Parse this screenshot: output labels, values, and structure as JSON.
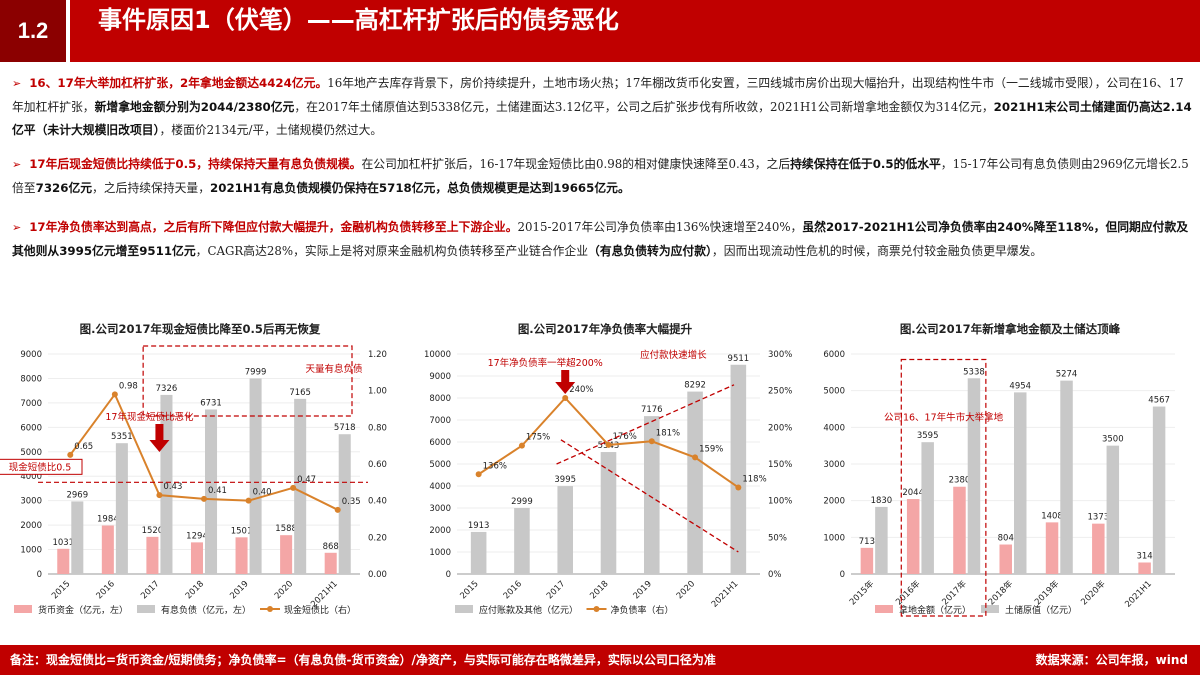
{
  "header": {
    "section": "1.2",
    "title": "事件原因1（伏笔）——高杠杆扩张后的债务恶化"
  },
  "bullets": [
    {
      "segments": [
        {
          "t": "16、17年大举加杠杆扩张，2年拿地金额达4424亿元。",
          "s": "red"
        },
        {
          "t": "16年地产去库存背景下，房价持续提升，土地市场火热；17年棚改货币化安置，三四线城市房价出现大幅抬升，出现结构性牛市（一二线城市受限），公司在16、17年加杠杆扩张，"
        },
        {
          "t": "新增拿地金额分别为2044/2380亿元",
          "s": "bk"
        },
        {
          "t": "，在2017年土储原值达到5338亿元，土储建面达3.12亿平，公司之后扩张步伐有所收敛，2021H1公司新增拿地金额仅为314亿元，"
        },
        {
          "t": "2021H1末公司土储建面仍高达2.14亿平（未计大规模旧改项目）",
          "s": "bk"
        },
        {
          "t": "，楼面价2134元/平，土储规模仍然过大。"
        }
      ]
    },
    {
      "segments": [
        {
          "t": "17年后现金短债比持续低于0.5，持续保持天量有息负债规模。",
          "s": "red"
        },
        {
          "t": "在公司加杠杆扩张后，16-17年现金短债比由0.98的相对健康快速降至0.43，之后"
        },
        {
          "t": "持续保持在低于0.5的低水平",
          "s": "bk"
        },
        {
          "t": "，15-17年公司有息负债则由2969亿元增长2.5倍至"
        },
        {
          "t": "7326亿元",
          "s": "bk"
        },
        {
          "t": "，之后持续保持天量，"
        },
        {
          "t": "2021H1有息负债规模仍保持在5718亿元，总负债规模更是达到19665亿元。",
          "s": "bk"
        }
      ]
    },
    {
      "segments": [
        {
          "t": "17年净负债率达到高点，之后有所下降但应付款大幅提升，金融机构负债转移至上下游企业。",
          "s": "red"
        },
        {
          "t": "2015-2017年公司净负债率由136%快速增至240%，"
        },
        {
          "t": "虽然2017-2021H1公司净负债率由240%降至118%，但同期应付款及其他则从3995亿元增至9511亿元",
          "s": "bk"
        },
        {
          "t": "，CAGR高达28%，实际上是将对原来金融机构负债转移至产业链合作企业"
        },
        {
          "t": "（有息负债转为应付款）",
          "s": "bk"
        },
        {
          "t": "，因而出现流动性危机的时候，商票兑付较金融负债更早爆发。"
        }
      ]
    }
  ],
  "chart_data": [
    {
      "type": "bar",
      "title": "图.公司2017年现金短债比降至0.5后再无恢复",
      "categories": [
        "2015",
        "2016",
        "2017",
        "2018",
        "2019",
        "2020",
        "2021H1"
      ],
      "series": [
        {
          "name": "货币资金（亿元，左）",
          "type": "bar",
          "color": "#f4a6a6",
          "values": [
            1031,
            1984,
            1520,
            1294,
            1501,
            1588,
            868
          ]
        },
        {
          "name": "有息负债（亿元，左）",
          "type": "bar",
          "color": "#c8c8c8",
          "values": [
            2969,
            5351,
            7326,
            6731,
            7999,
            7165,
            5718
          ]
        },
        {
          "name": "现金短债比（右）",
          "type": "line",
          "color": "#d9822b",
          "axis": "right",
          "values": [
            0.65,
            0.98,
            0.43,
            0.41,
            0.4,
            0.47,
            0.35
          ]
        }
      ],
      "ylim": [
        0,
        9000
      ],
      "y_ticks": [
        0,
        1000,
        2000,
        3000,
        4000,
        5000,
        6000,
        7000,
        8000,
        9000
      ],
      "y2lim": [
        0,
        1.2
      ],
      "y2_ticks": [
        "0.00",
        "0.20",
        "0.40",
        "0.60",
        "0.80",
        "1.00",
        "1.20"
      ],
      "annotations": {
        "threshold": "现金短债比0.5",
        "threshold_value": 0.5,
        "arrow": "17年现金短债比恶化",
        "box": "天量有息负债"
      }
    },
    {
      "type": "bar",
      "title": "图.公司2017年净负债率大幅提升",
      "categories": [
        "2015",
        "2016",
        "2017",
        "2018",
        "2019",
        "2020",
        "2021H1"
      ],
      "series": [
        {
          "name": "应付账款及其他（亿元）",
          "type": "bar",
          "color": "#c8c8c8",
          "values": [
            1913,
            2999,
            3995,
            5543,
            7176,
            8292,
            9511
          ]
        },
        {
          "name": "净负债率（右）",
          "type": "line",
          "color": "#d9822b",
          "axis": "right",
          "values": [
            136,
            175,
            240,
            176,
            181,
            159,
            118
          ]
        }
      ],
      "ylim": [
        0,
        10000
      ],
      "y_ticks": [
        0,
        1000,
        2000,
        3000,
        4000,
        5000,
        6000,
        7000,
        8000,
        9000,
        10000
      ],
      "y2lim": [
        0,
        300
      ],
      "y2_ticks": [
        "0%",
        "50%",
        "100%",
        "150%",
        "200%",
        "250%",
        "300%"
      ],
      "annotations": {
        "arrow": "17年净负债率一举超200%",
        "trend": "应付款快速增长"
      }
    },
    {
      "type": "bar",
      "title": "图.公司2017年新增拿地金额及土储达顶峰",
      "categories": [
        "2015年",
        "2016年",
        "2017年",
        "2018年",
        "2019年",
        "2020年",
        "2021H1"
      ],
      "series": [
        {
          "name": "拿地金额（亿元）",
          "type": "bar",
          "color": "#f4a6a6",
          "values": [
            713,
            2044,
            2380,
            804,
            1408,
            1373,
            314
          ]
        },
        {
          "name": "土储原值（亿元）",
          "type": "bar",
          "color": "#c8c8c8",
          "values": [
            1830,
            3595,
            5338,
            4954,
            5274,
            3500,
            4567
          ]
        }
      ],
      "ylim": [
        0,
        6000
      ],
      "y_ticks": [
        0,
        1000,
        2000,
        3000,
        4000,
        5000,
        6000
      ],
      "annotations": {
        "box": "公司16、17年牛市大举拿地"
      }
    }
  ],
  "footer": {
    "note": "备注：现金短债比=货币资金/短期债务；净负债率=（有息负债-货币资金）/净资产，与实际可能存在略微差异，实际以公司口径为准",
    "source": "数据来源：公司年报，wind"
  }
}
